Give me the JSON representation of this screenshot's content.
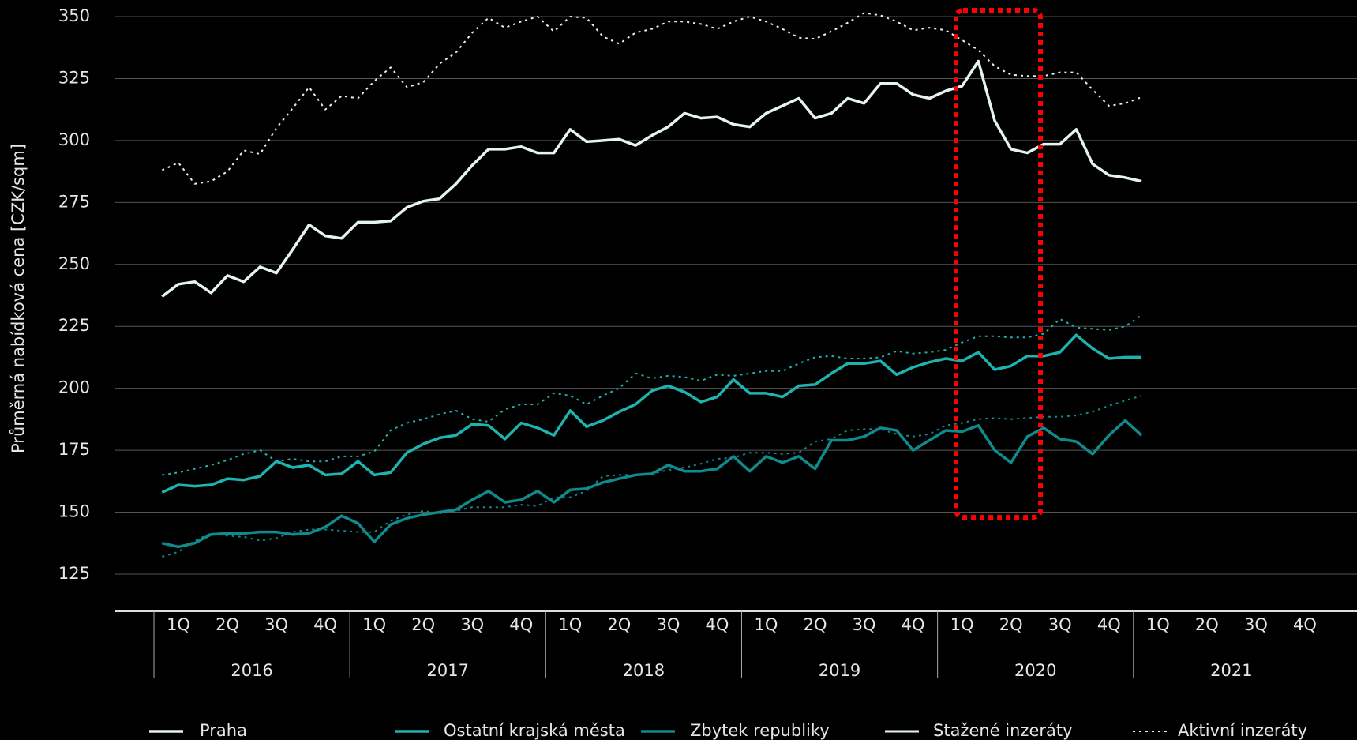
{
  "chart_data": {
    "type": "line",
    "y_axis_label": "Průměrná nabídková cena [CZK/sqm]",
    "quarters": [
      "1Q",
      "2Q",
      "3Q",
      "4Q"
    ],
    "years": [
      2016,
      2017,
      2018,
      2019,
      2020,
      2021
    ],
    "ylim": [
      110,
      350
    ],
    "yticks": [
      125,
      150,
      175,
      200,
      225,
      250,
      275,
      300,
      325,
      350
    ],
    "grid": true,
    "line_styles": [
      {
        "name": "Stažené inzeráty",
        "dash": "solid"
      },
      {
        "name": "Aktivní inzeráty",
        "dash": "dotted"
      }
    ],
    "series": [
      {
        "name": "Praha",
        "color": "#e6f4f1",
        "values": [
          237,
          242,
          243,
          238.5,
          245.5,
          243,
          249,
          246.5,
          256,
          266,
          261.5,
          260.5,
          267,
          267,
          267.5,
          273,
          275.5,
          276.5,
          282.5,
          290,
          296.5,
          296.5,
          297.5,
          295,
          295,
          304.5,
          299.5,
          300,
          300.5,
          298,
          302,
          305.5,
          311,
          309,
          309.5,
          306.5,
          305.5,
          311,
          314,
          317,
          309,
          311,
          317,
          315,
          323,
          323,
          318.5,
          317,
          320,
          322,
          332,
          308,
          296.5,
          295,
          298.5,
          298.5,
          304.5,
          290.5,
          286,
          285,
          283.5
        ],
        "active_values": [
          288,
          291,
          282.5,
          283.5,
          287.5,
          296,
          294.5,
          305,
          313,
          321.5,
          312.5,
          318,
          317,
          324,
          329.5,
          321.5,
          323.5,
          331,
          335.5,
          343.5,
          349.5,
          345.5,
          348,
          350,
          344,
          350,
          349.5,
          342,
          339,
          343.5,
          345,
          348,
          348,
          347,
          345,
          348,
          350,
          348,
          345,
          341.5,
          341,
          344,
          347.5,
          351.5,
          350.5,
          348,
          344.5,
          345.5,
          344.5,
          340.5,
          336.5,
          330,
          326.5,
          326,
          326,
          327.5,
          327.5,
          320.5,
          314,
          315,
          317.5
        ]
      },
      {
        "name": "Ostatní krajská města",
        "color": "#1fb3af",
        "values": [
          158,
          161,
          160.5,
          161,
          163.5,
          163,
          164.5,
          170.5,
          168,
          169,
          165,
          165.5,
          170.5,
          165,
          166,
          174,
          177.5,
          180,
          181,
          185.5,
          185,
          179.5,
          186,
          184,
          181,
          191,
          184.5,
          187,
          190.5,
          193.5,
          199,
          201,
          198.5,
          194.5,
          196.5,
          203.5,
          198,
          198,
          196.5,
          201,
          201.5,
          206,
          210,
          210,
          211,
          205.5,
          208.5,
          210.5,
          212,
          211,
          214.5,
          207.5,
          209,
          213,
          213,
          214.5,
          221.5,
          216,
          212,
          212.5,
          212.5
        ],
        "active_values": [
          165,
          166,
          167.5,
          169,
          171,
          173.5,
          175,
          170.5,
          171.5,
          170.5,
          170.5,
          172.5,
          172.5,
          174.5,
          183,
          186,
          187.5,
          189.5,
          191,
          187.5,
          186.5,
          191.5,
          193.5,
          193.5,
          198,
          197,
          193.5,
          197,
          200,
          206,
          204,
          205,
          204.5,
          203,
          205.5,
          205,
          206,
          207,
          207,
          210,
          212.5,
          213,
          212,
          212,
          212.5,
          215,
          214,
          214.5,
          215.5,
          218.5,
          221,
          221,
          220.5,
          220.5,
          222,
          228,
          224.5,
          224,
          223.5,
          225,
          229.5
        ]
      },
      {
        "name": "Zbytek republiky",
        "color": "#0f8a8d",
        "values": [
          137.5,
          136,
          137.5,
          141,
          141.5,
          141.5,
          142,
          142,
          141,
          141.5,
          144,
          148.5,
          145.5,
          138,
          145,
          147.5,
          149,
          150,
          151,
          155,
          158.5,
          154,
          155,
          158.5,
          154,
          159,
          159.5,
          162,
          163.5,
          165,
          165.5,
          169,
          166.5,
          166.5,
          167.5,
          172.5,
          166.5,
          172.5,
          170,
          172.5,
          167.5,
          179,
          179,
          180.5,
          184,
          183,
          175,
          179,
          183,
          182.5,
          185,
          175,
          170,
          180.5,
          184,
          179.5,
          178.5,
          173.5,
          181,
          187,
          181
        ],
        "active_values": [
          132,
          134,
          138.5,
          141.5,
          140.5,
          140,
          138.5,
          139.5,
          142,
          143,
          143,
          142.5,
          142,
          142,
          146.5,
          149,
          150.5,
          149.5,
          150.5,
          152,
          152,
          152,
          153,
          152.5,
          156,
          156,
          158.5,
          164.5,
          165,
          165,
          165.5,
          167,
          168,
          169.5,
          171.5,
          172,
          174,
          174,
          173.5,
          174,
          178.5,
          179.5,
          183,
          183.5,
          183.5,
          181.5,
          180.5,
          181.5,
          185,
          186,
          187.5,
          188,
          187.5,
          188,
          188.5,
          188.5,
          189,
          190.5,
          193,
          195,
          197
        ]
      }
    ]
  }
}
